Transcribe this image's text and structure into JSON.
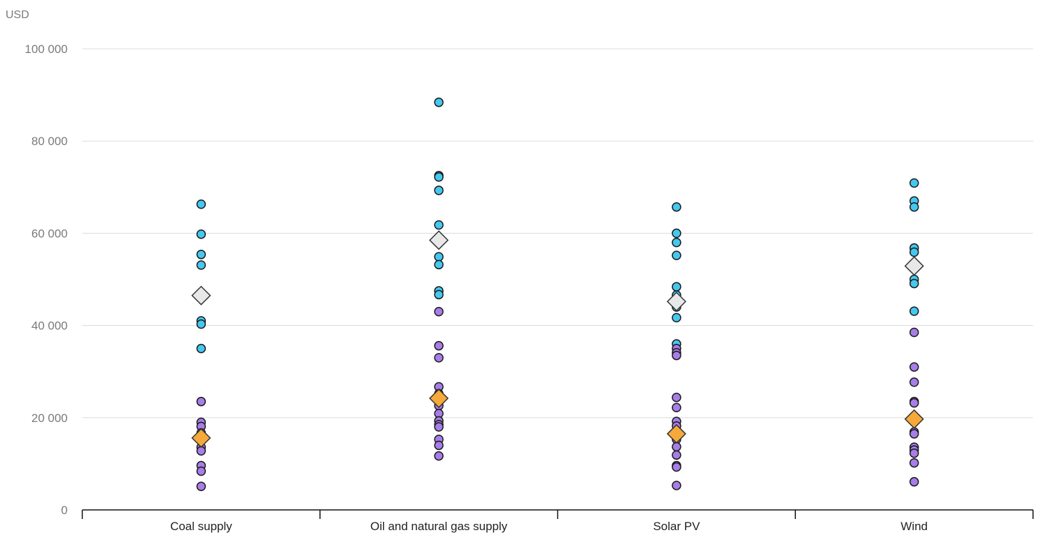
{
  "chart_data": {
    "type": "scatter",
    "ylabel": "USD",
    "ylim": [
      0,
      100000
    ],
    "yticks": [
      0,
      20000,
      40000,
      60000,
      80000,
      100000
    ],
    "ytick_labels": [
      "0",
      "20 000",
      "40 000",
      "60 000",
      "80 000",
      "100 000"
    ],
    "categories": [
      "Coal supply",
      "Oil and natural gas supply",
      "Solar PV",
      "Wind"
    ],
    "grid": true,
    "colors": {
      "blue_series": "#45c8f0",
      "purple_series": "#a77ee8",
      "light_diamond": "#e8e8e8",
      "orange_diamond": "#f5a93a"
    },
    "series": [
      {
        "marker": "circle",
        "color": "#45c8f0",
        "values": [
          [
            66300,
            59800,
            55400,
            53100,
            41000,
            40300,
            35000
          ],
          [
            88400,
            72500,
            72200,
            69300,
            61800,
            54900,
            53200,
            47500,
            46700
          ],
          [
            65700,
            60000,
            58000,
            55200,
            48400,
            46600,
            44000,
            41700,
            36000
          ],
          [
            70900,
            67000,
            65700,
            56800,
            55900,
            50000,
            49100,
            43100
          ]
        ]
      },
      {
        "marker": "circle",
        "color": "#a77ee8",
        "values": [
          [
            23500,
            19000,
            18100,
            16700,
            13600,
            12800,
            9600,
            8400,
            5100
          ],
          [
            43000,
            35600,
            33000,
            26700,
            25200,
            22600,
            20900,
            19300,
            18500,
            18000,
            15300,
            14000,
            11700
          ],
          [
            35000,
            34100,
            33500,
            24400,
            22200,
            19200,
            18200,
            16100,
            15300,
            13700,
            11900,
            9600,
            9300,
            5300
          ],
          [
            38500,
            31000,
            27700,
            23500,
            23200,
            16900,
            16500,
            13600,
            13000,
            12300,
            10200,
            6100
          ]
        ]
      },
      {
        "marker": "diamond",
        "color": "#e8e8e8",
        "values": [
          46500,
          58500,
          45200,
          52900
        ]
      },
      {
        "marker": "diamond",
        "color": "#f5a93a",
        "values": [
          15600,
          24200,
          16500,
          19700
        ]
      }
    ]
  }
}
